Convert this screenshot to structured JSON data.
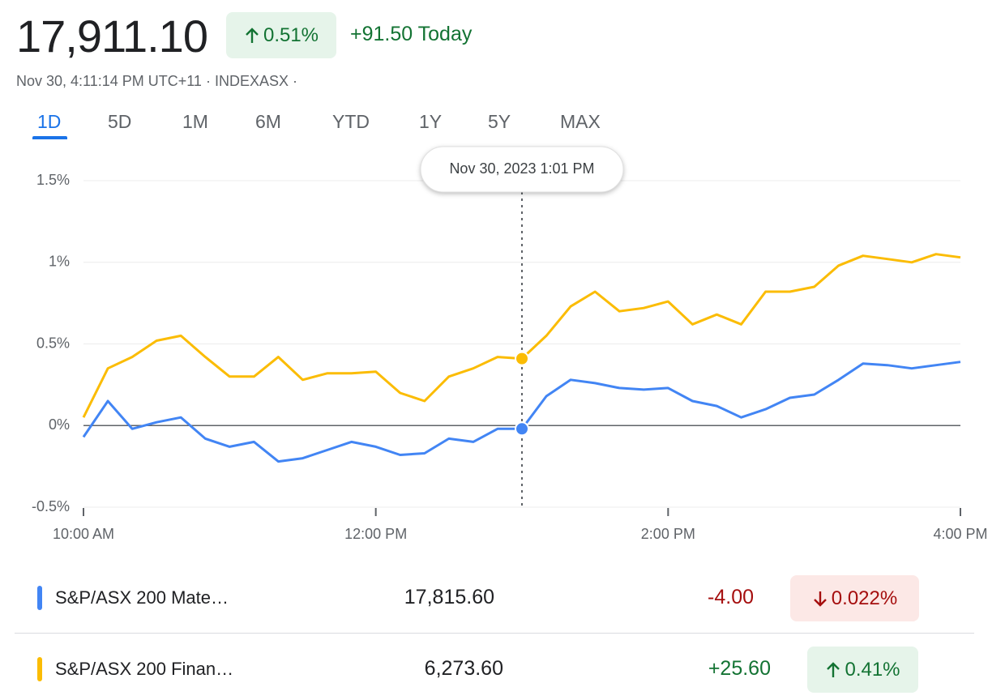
{
  "header": {
    "price": "17,911.10",
    "change_percent": "0.51%",
    "change_today": "+91.50 Today",
    "subtitle": "Nov 30, 4:11:14 PM UTC+11 · INDEXASX ·"
  },
  "tabs": {
    "items": [
      "1D",
      "5D",
      "1M",
      "6M",
      "YTD",
      "1Y",
      "5Y",
      "MAX"
    ],
    "selected": "1D"
  },
  "chart_data": {
    "type": "line",
    "tooltip": "Nov 30, 2023 1:01 PM",
    "x": [
      "10:00",
      "10:10",
      "10:20",
      "10:30",
      "10:40",
      "10:50",
      "11:00",
      "11:10",
      "11:20",
      "11:30",
      "11:40",
      "11:50",
      "12:00",
      "12:10",
      "12:20",
      "12:30",
      "12:40",
      "12:50",
      "13:00",
      "13:10",
      "13:20",
      "13:30",
      "13:40",
      "13:50",
      "14:00",
      "14:10",
      "14:20",
      "14:30",
      "14:40",
      "14:50",
      "15:00",
      "15:10",
      "15:20",
      "15:30",
      "15:40",
      "15:50",
      "16:00"
    ],
    "xlim": [
      "10:00",
      "16:00"
    ],
    "xticks": [
      {
        "value": "10:00",
        "label": "10:00 AM"
      },
      {
        "value": "12:00",
        "label": "12:00 PM"
      },
      {
        "value": "14:00",
        "label": "2:00 PM"
      },
      {
        "value": "16:00",
        "label": "4:00 PM"
      }
    ],
    "ylim": [
      -0.5,
      1.5
    ],
    "yticks": [
      {
        "value": -0.5,
        "label": "-0.5%"
      },
      {
        "value": 0,
        "label": "0%"
      },
      {
        "value": 0.5,
        "label": "0.5%"
      },
      {
        "value": 1,
        "label": "1%"
      },
      {
        "value": 1.5,
        "label": "1.5%"
      }
    ],
    "grid": true,
    "series": [
      {
        "name": "S&P/ASX 200 Mate…",
        "color": "#4285f4",
        "values": [
          -0.07,
          0.15,
          -0.02,
          0.02,
          0.05,
          -0.08,
          -0.13,
          -0.1,
          -0.22,
          -0.2,
          -0.15,
          -0.1,
          -0.13,
          -0.18,
          -0.17,
          -0.08,
          -0.1,
          -0.02,
          -0.02,
          0.18,
          0.28,
          0.26,
          0.23,
          0.22,
          0.23,
          0.15,
          0.12,
          0.05,
          0.1,
          0.17,
          0.19,
          0.28,
          0.38,
          0.37,
          0.35,
          0.37,
          0.39
        ]
      },
      {
        "name": "S&P/ASX 200 Finan…",
        "color": "#fbbc04",
        "values": [
          0.05,
          0.35,
          0.42,
          0.52,
          0.55,
          0.42,
          0.3,
          0.3,
          0.42,
          0.28,
          0.32,
          0.32,
          0.33,
          0.2,
          0.15,
          0.3,
          0.35,
          0.42,
          0.41,
          0.55,
          0.73,
          0.82,
          0.7,
          0.72,
          0.76,
          0.62,
          0.68,
          0.62,
          0.82,
          0.82,
          0.85,
          0.98,
          1.04,
          1.02,
          1.0,
          1.05,
          1.03
        ]
      }
    ]
  },
  "quotes": [
    {
      "price": "17,815.60",
      "change": "-4.00",
      "percent": "0.022%",
      "direction": "down"
    },
    {
      "price": "6,273.60",
      "change": "+25.60",
      "percent": "0.41%",
      "direction": "up"
    }
  ]
}
